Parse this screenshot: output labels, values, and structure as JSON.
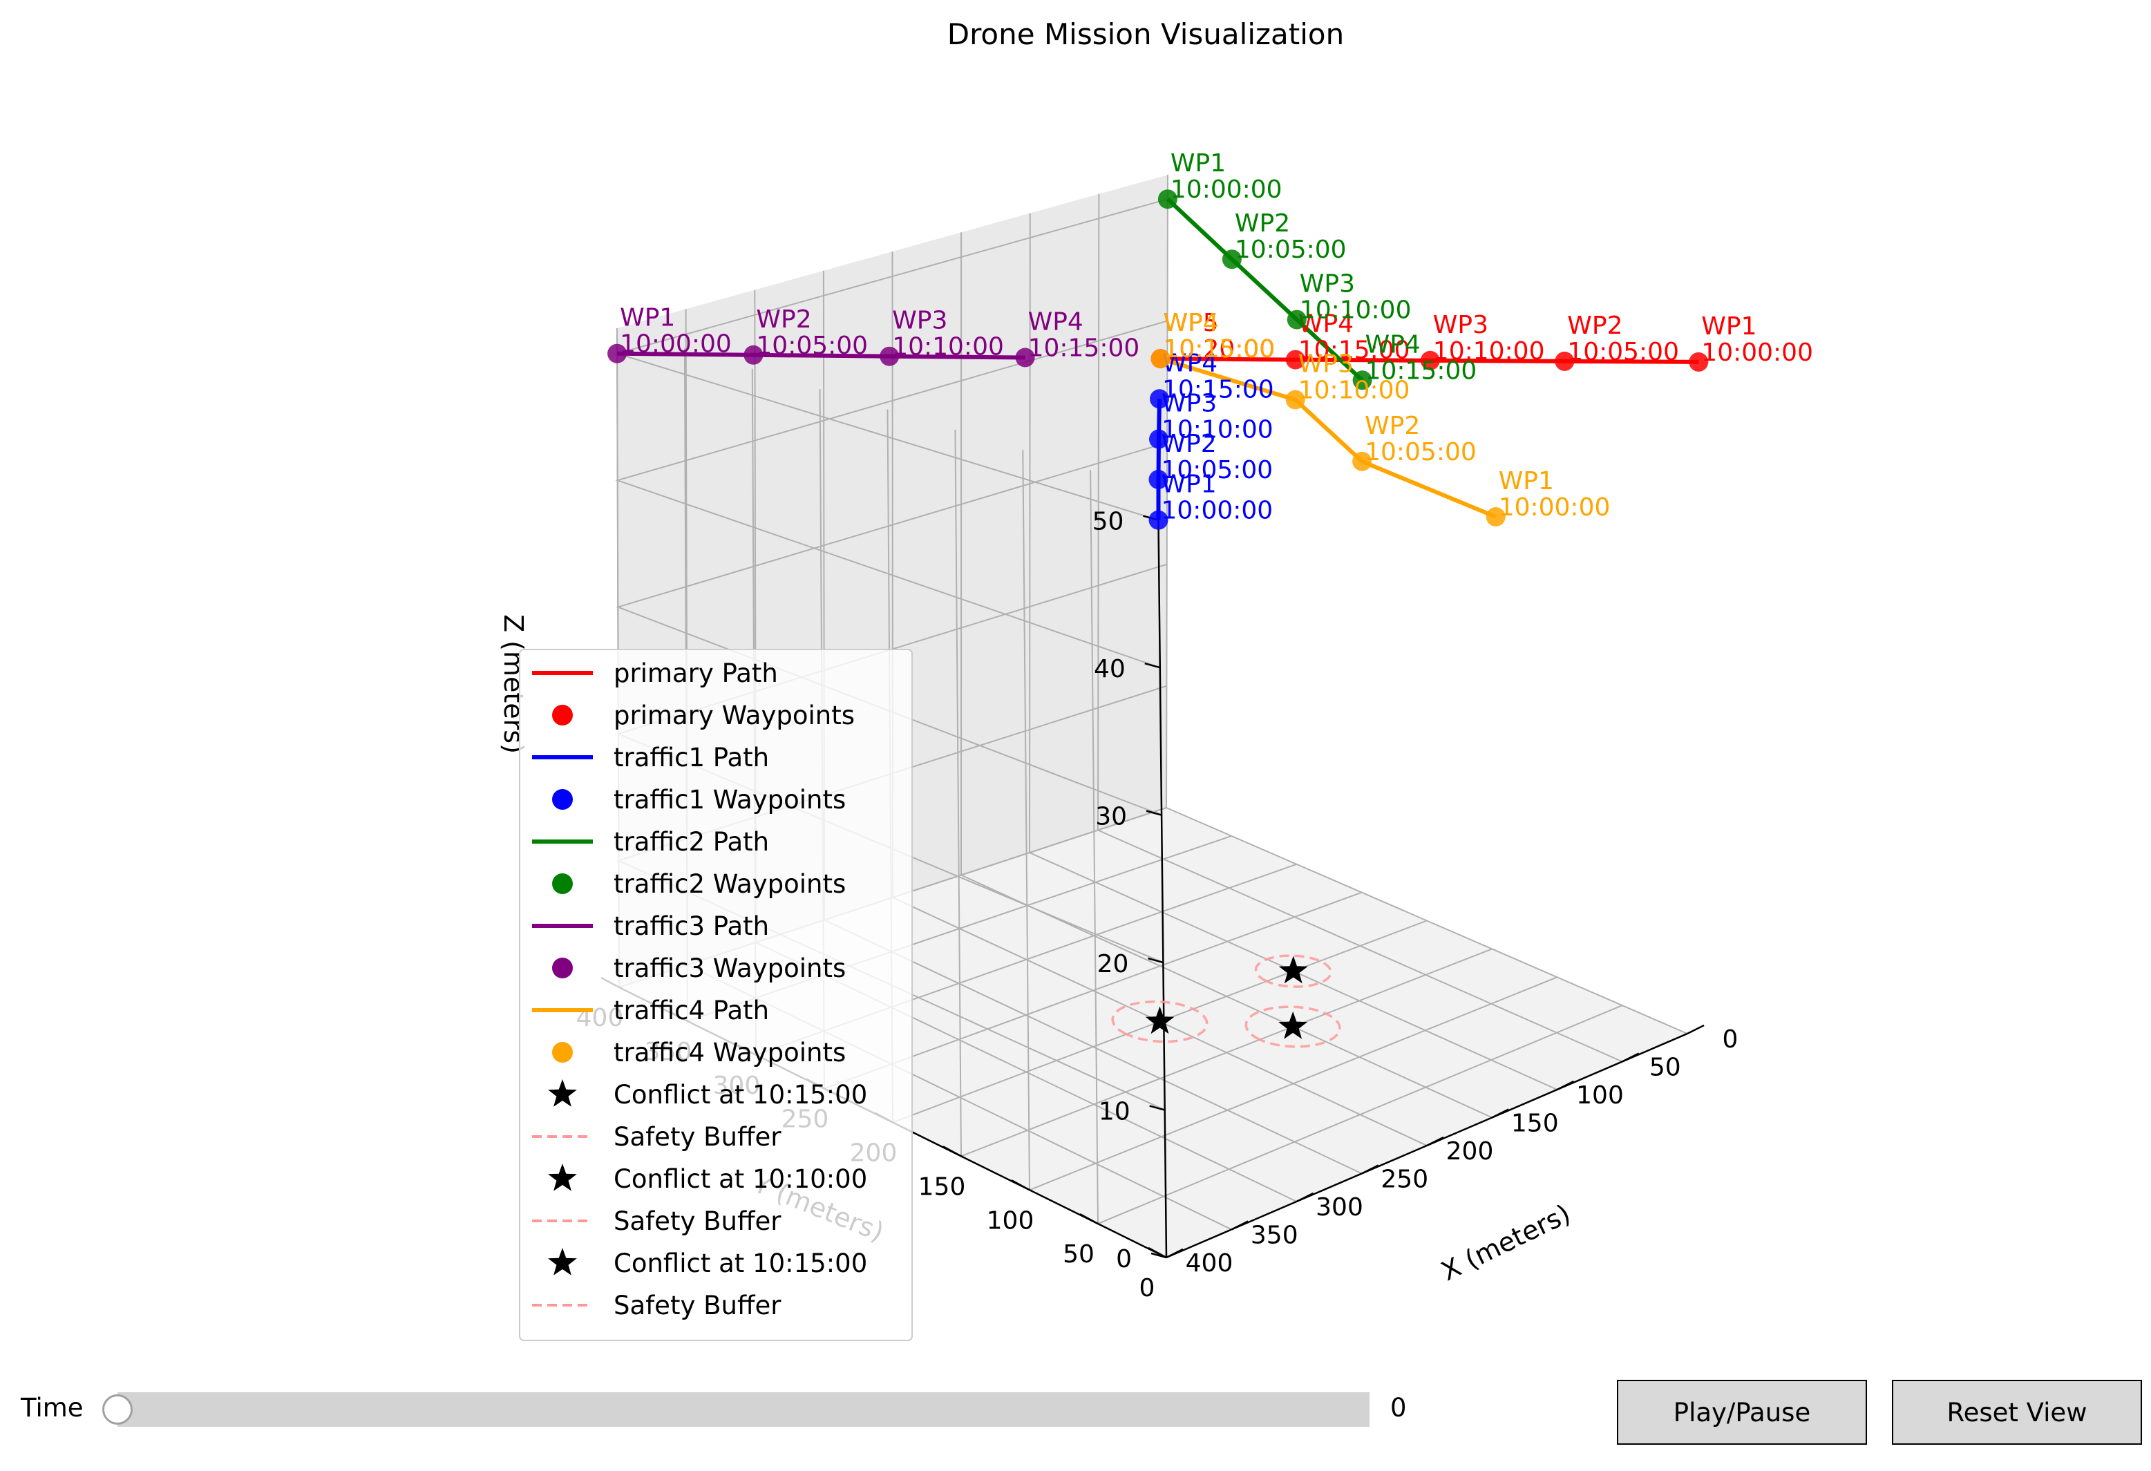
{
  "title": "Drone Mission Visualization",
  "axes": {
    "xlabel": "X (meters)",
    "ylabel": "Y (meters)",
    "zlabel": "Z (meters)",
    "xticks": [
      "0",
      "50",
      "100",
      "150",
      "200",
      "250",
      "300",
      "350",
      "400"
    ],
    "yticks": [
      "0",
      "50",
      "100",
      "150",
      "200",
      "250",
      "300",
      "350",
      "400"
    ],
    "zticks": [
      "0",
      "10",
      "20",
      "30",
      "40",
      "50"
    ]
  },
  "controls": {
    "time_label": "Time",
    "slider_value": "0",
    "play_label": "Play/Pause",
    "reset_label": "Reset View"
  },
  "legend": [
    {
      "label": "primary Path",
      "kind": "line",
      "color": "#ff0000"
    },
    {
      "label": "primary Waypoints",
      "kind": "dot",
      "color": "#ff0000"
    },
    {
      "label": "traffic1 Path",
      "kind": "line",
      "color": "#0000ff"
    },
    {
      "label": "traffic1 Waypoints",
      "kind": "dot",
      "color": "#0000ff"
    },
    {
      "label": "traffic2 Path",
      "kind": "line",
      "color": "#008000"
    },
    {
      "label": "traffic2 Waypoints",
      "kind": "dot",
      "color": "#008000"
    },
    {
      "label": "traffic3 Path",
      "kind": "line",
      "color": "#800080"
    },
    {
      "label": "traffic3 Waypoints",
      "kind": "dot",
      "color": "#800080"
    },
    {
      "label": "traffic4 Path",
      "kind": "line",
      "color": "#ffa500"
    },
    {
      "label": "traffic4 Waypoints",
      "kind": "dot",
      "color": "#ffa500"
    },
    {
      "label": "Conflict at 10:15:00",
      "kind": "star",
      "color": "#000000"
    },
    {
      "label": "Safety Buffer",
      "kind": "dash",
      "color": "#ff9999"
    },
    {
      "label": "Conflict at 10:10:00",
      "kind": "star",
      "color": "#000000"
    },
    {
      "label": "Safety Buffer",
      "kind": "dash",
      "color": "#ff9999"
    },
    {
      "label": "Conflict at 10:15:00",
      "kind": "star",
      "color": "#000000"
    },
    {
      "label": "Safety Buffer",
      "kind": "dash",
      "color": "#ff9999"
    }
  ],
  "chart_data": {
    "type": "line",
    "projection": "3d",
    "xlim": [
      0,
      400
    ],
    "ylim": [
      0,
      400
    ],
    "zlim": [
      0,
      52
    ],
    "grid": true,
    "legend_position": "left",
    "series": [
      {
        "name": "primary",
        "color": "#ff0000",
        "waypoints": [
          {
            "label": "WP1",
            "time": "10:00:00",
            "x": 0,
            "y": 0,
            "z": 50
          },
          {
            "label": "WP2",
            "time": "10:05:00",
            "x": 50,
            "y": 50,
            "z": 50
          },
          {
            "label": "WP3",
            "time": "10:10:00",
            "x": 100,
            "y": 100,
            "z": 50
          },
          {
            "label": "WP4",
            "time": "10:15:00",
            "x": 150,
            "y": 150,
            "z": 50
          },
          {
            "label": "WP5",
            "time": "10:20:00",
            "x": 200,
            "y": 200,
            "z": 50
          }
        ]
      },
      {
        "name": "traffic1",
        "color": "#0000ff",
        "waypoints": [
          {
            "label": "WP1",
            "time": "10:00:00",
            "x": 400,
            "y": 0,
            "z": 50
          },
          {
            "label": "WP2",
            "time": "10:05:00",
            "x": 350,
            "y": 50,
            "z": 50
          },
          {
            "label": "WP3",
            "time": "10:10:00",
            "x": 300,
            "y": 100,
            "z": 50
          },
          {
            "label": "WP4",
            "time": "10:15:00",
            "x": 250,
            "y": 150,
            "z": 50
          }
        ]
      },
      {
        "name": "traffic2",
        "color": "#008000",
        "waypoints": [
          {
            "label": "WP1",
            "time": "10:00:00",
            "x": 0,
            "y": 400,
            "z": 50
          },
          {
            "label": "WP2",
            "time": "10:05:00",
            "x": 50,
            "y": 300,
            "z": 50
          },
          {
            "label": "WP3",
            "time": "10:10:00",
            "x": 100,
            "y": 200,
            "z": 50
          },
          {
            "label": "WP4",
            "time": "10:15:00",
            "x": 150,
            "y": 100,
            "z": 50
          }
        ]
      },
      {
        "name": "traffic3",
        "color": "#800080",
        "waypoints": [
          {
            "label": "WP1",
            "time": "10:00:00",
            "x": 400,
            "y": 400,
            "z": 50
          },
          {
            "label": "WP2",
            "time": "10:05:00",
            "x": 350,
            "y": 350,
            "z": 50
          },
          {
            "label": "WP3",
            "time": "10:10:00",
            "x": 300,
            "y": 300,
            "z": 50
          },
          {
            "label": "WP4",
            "time": "10:15:00",
            "x": 250,
            "y": 250,
            "z": 50
          }
        ]
      },
      {
        "name": "traffic4",
        "color": "#ffa500",
        "waypoints": [
          {
            "label": "WP1",
            "time": "10:00:00",
            "x": 100,
            "y": 50,
            "z": 40
          },
          {
            "label": "WP2",
            "time": "10:05:00",
            "x": 150,
            "y": 100,
            "z": 44
          },
          {
            "label": "WP3",
            "time": "10:10:00",
            "x": 150,
            "y": 150,
            "z": 47
          },
          {
            "label": "WP4",
            "time": "10:15:00",
            "x": 200,
            "y": 200,
            "z": 50
          }
        ]
      }
    ],
    "conflicts": [
      {
        "time": "10:15:00",
        "x": 150,
        "y": 150,
        "z": 0,
        "buffer_radius": 25
      },
      {
        "time": "10:10:00",
        "x": 100,
        "y": 200,
        "z": 0,
        "buffer_radius": 20
      },
      {
        "time": "10:15:00",
        "x": 200,
        "y": 200,
        "z": 0,
        "buffer_radius": 25
      }
    ]
  }
}
